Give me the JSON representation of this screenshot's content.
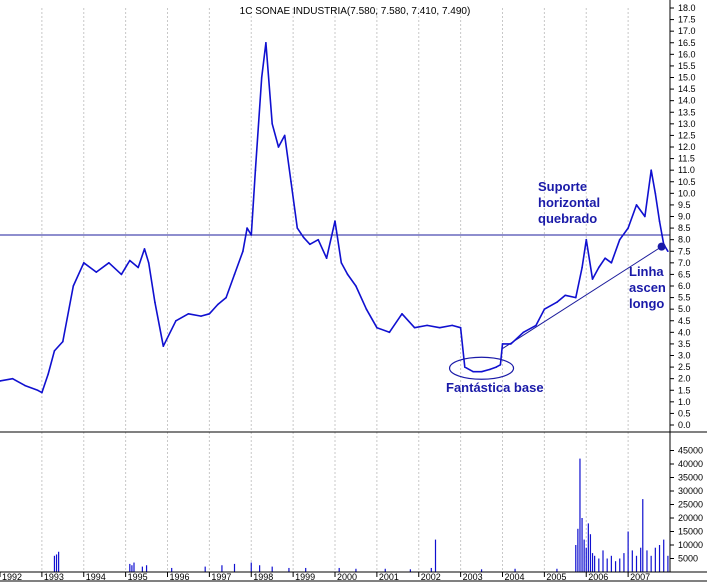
{
  "chart_data": [
    {
      "type": "line",
      "title": "1C SONAE INDUSTRIA(7.580, 7.580, 7.410, 7.490)",
      "xlabel": "",
      "ylabel": "",
      "x_ticks": [
        "1992",
        "1993",
        "1994",
        "1995",
        "1996",
        "1997",
        "1998",
        "1999",
        "2000",
        "2001",
        "2002",
        "2003",
        "2004",
        "2005",
        "2006",
        "2007"
      ],
      "y_ticks": [
        "18.0",
        "17.5",
        "17.0",
        "16.5",
        "16.0",
        "15.5",
        "15.0",
        "14.5",
        "14.0",
        "13.5",
        "13.0",
        "12.5",
        "12.0",
        "11.5",
        "11.0",
        "10.5",
        "10.0",
        "9.5",
        "9.0",
        "8.5",
        "8.0",
        "7.5",
        "7.0",
        "6.5",
        "6.0",
        "5.5",
        "5.0",
        "4.5",
        "4.0",
        "3.5",
        "3.0",
        "2.5",
        "2.0",
        "1.5",
        "1.0",
        "0.5",
        "0.0"
      ],
      "ylim": [
        0,
        18
      ],
      "xlim": [
        1992.0,
        2008.0
      ],
      "grid": true,
      "series": [
        {
          "x": [
            1992.0,
            1992.3,
            1992.6,
            1992.9,
            1993.0,
            1993.15,
            1993.3,
            1993.5,
            1993.75,
            1994.0,
            1994.3,
            1994.6,
            1994.9,
            1995.1,
            1995.3,
            1995.45,
            1995.55,
            1995.7,
            1995.9,
            1996.2,
            1996.5,
            1996.8,
            1997.0,
            1997.2,
            1997.4,
            1997.6,
            1997.8,
            1997.9,
            1998.0,
            1998.1,
            1998.25,
            1998.35,
            1998.5,
            1998.65,
            1998.8,
            1998.95,
            1999.1,
            1999.25,
            1999.4,
            1999.6,
            1999.8,
            2000.0,
            2000.15,
            2000.3,
            2000.5,
            2000.75,
            2001.0,
            2001.3,
            2001.6,
            2001.9,
            2002.2,
            2002.5,
            2002.8,
            2003.0,
            2003.1,
            2003.3,
            2003.5,
            2003.7,
            2003.85,
            2003.95,
            2004.0,
            2004.2,
            2004.5,
            2004.8,
            2005.0,
            2005.3,
            2005.5,
            2005.75,
            2005.9,
            2006.0,
            2006.15,
            2006.3,
            2006.45,
            2006.6,
            2006.8,
            2007.0,
            2007.2,
            2007.4,
            2007.55,
            2007.65,
            2007.75,
            2007.85,
            2007.95
          ],
          "values": [
            1.9,
            2.0,
            1.7,
            1.5,
            1.4,
            2.2,
            3.2,
            3.6,
            6.0,
            7.0,
            6.6,
            7.0,
            6.5,
            7.1,
            6.8,
            7.6,
            7.0,
            5.3,
            3.4,
            4.5,
            4.8,
            4.7,
            4.8,
            5.2,
            5.5,
            6.5,
            7.5,
            8.5,
            8.2,
            11.0,
            15.0,
            16.5,
            13.0,
            12.0,
            12.5,
            10.5,
            8.5,
            8.1,
            7.8,
            8.0,
            7.2,
            8.8,
            7.0,
            6.5,
            6.0,
            5.0,
            4.2,
            4.0,
            4.8,
            4.2,
            4.3,
            4.2,
            4.3,
            4.2,
            2.5,
            2.3,
            2.3,
            2.4,
            2.5,
            2.6,
            3.5,
            3.5,
            4.0,
            4.3,
            5.0,
            5.3,
            5.6,
            5.5,
            6.8,
            8.0,
            6.3,
            6.8,
            7.2,
            7.0,
            8.0,
            8.5,
            9.5,
            9.0,
            11.0,
            10.0,
            8.8,
            7.8,
            7.5
          ]
        }
      ],
      "annotations": [
        {
          "text": "Suporte",
          "group": "suporte"
        },
        {
          "text": "horizontal",
          "group": "suporte"
        },
        {
          "text": "quebrado",
          "group": "suporte"
        },
        {
          "text": "Linha",
          "group": "linha"
        },
        {
          "text": "ascen",
          "group": "linha"
        },
        {
          "text": "longo",
          "group": "linha"
        },
        {
          "text": "Fantástica base",
          "group": "base"
        }
      ],
      "horizontal_line": 8.2,
      "trendline": {
        "x": [
          2004.0,
          2007.8
        ],
        "values": [
          3.3,
          7.7
        ]
      },
      "colors": {
        "series": "#1010d0",
        "lines": "#1c1c9c",
        "annotation": "#1a1aa8",
        "grid": "#c8c8c8"
      }
    },
    {
      "type": "bar",
      "ylabel": "",
      "y_ticks": [
        "45000",
        "40000",
        "35000",
        "30000",
        "25000",
        "20000",
        "15000",
        "10000",
        "5000"
      ],
      "ylim": [
        0,
        50000
      ],
      "x": [
        1993.3,
        1993.35,
        1993.4,
        1995.1,
        1995.15,
        1995.2,
        1995.4,
        1995.5,
        1996.1,
        1996.9,
        1997.3,
        1997.6,
        1998.0,
        1998.2,
        1998.5,
        1998.9,
        1999.3,
        2000.1,
        2000.5,
        2001.2,
        2001.8,
        2002.3,
        2002.4,
        2003.5,
        2004.3,
        2005.3,
        2005.75,
        2005.8,
        2005.85,
        2005.9,
        2005.95,
        2006.0,
        2006.05,
        2006.1,
        2006.15,
        2006.2,
        2006.3,
        2006.4,
        2006.5,
        2006.6,
        2006.7,
        2006.8,
        2006.9,
        2007.0,
        2007.1,
        2007.2,
        2007.3,
        2007.35,
        2007.45,
        2007.55,
        2007.65,
        2007.75,
        2007.85,
        2007.95
      ],
      "values": [
        6000,
        6500,
        7500,
        3000,
        2500,
        3500,
        2000,
        2500,
        1500,
        2000,
        2500,
        3000,
        3500,
        2500,
        2000,
        1500,
        1500,
        1500,
        1200,
        1200,
        1000,
        1500,
        12000,
        1000,
        1200,
        1200,
        10000,
        16000,
        42000,
        20000,
        12000,
        9000,
        18000,
        14000,
        7000,
        6000,
        5000,
        8000,
        5000,
        6000,
        4000,
        5000,
        7000,
        15000,
        8000,
        6000,
        9000,
        27000,
        8000,
        6000,
        9000,
        10000,
        12000,
        6000
      ]
    }
  ]
}
